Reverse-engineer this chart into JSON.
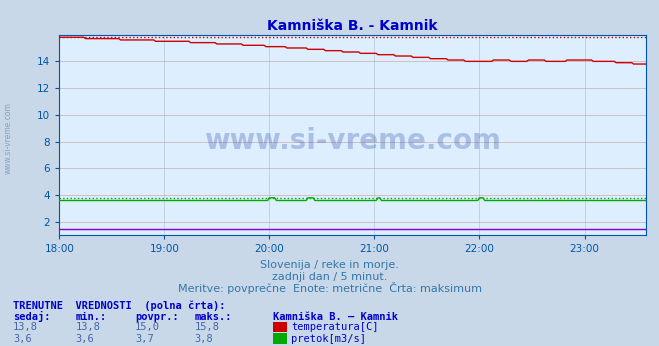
{
  "title": "Kamniška B. - Kamnik",
  "title_color": "#0000cc",
  "plot_bg_color": "#ddeeff",
  "fig_bg_color": "#c8d8e8",
  "xlabel_text1": "Slovenija / reke in morje.",
  "xlabel_text2": "zadnji dan / 5 minut.",
  "xlabel_text3": "Meritve: povprečne  Enote: metrične  Črta: maksimum",
  "watermark": "www.si-vreme.com",
  "grid_color_h": "#cc9999",
  "grid_color_v": "#aabbcc",
  "xmin": 0,
  "xmax": 335,
  "ymin": 1,
  "ymax": 16,
  "yticks": [
    2,
    4,
    6,
    8,
    10,
    12,
    14
  ],
  "xtick_labels": [
    "18:00",
    "19:00",
    "20:00",
    "21:00",
    "22:00",
    "23:00"
  ],
  "xtick_positions": [
    0,
    60,
    120,
    180,
    240,
    300
  ],
  "temp_color": "#cc0000",
  "flow_color": "#00aa00",
  "height_color": "#8800cc",
  "temp_max_const": 15.8,
  "flow_max_const": 3.8,
  "height_const": 1.5,
  "table_header": "TRENUTNE  VREDNOSTI  (polna črta):",
  "col_headers": [
    "sedaj:",
    "min.:",
    "povpr.:",
    "maks.:"
  ],
  "temp_values": [
    13.8,
    13.8,
    15.0,
    15.8
  ],
  "flow_values": [
    3.6,
    3.6,
    3.7,
    3.8
  ],
  "legend_station": "Kamniška B. – Kamnik",
  "legend_temp": "temperatura[C]",
  "legend_flow": "pretok[m3/s]"
}
